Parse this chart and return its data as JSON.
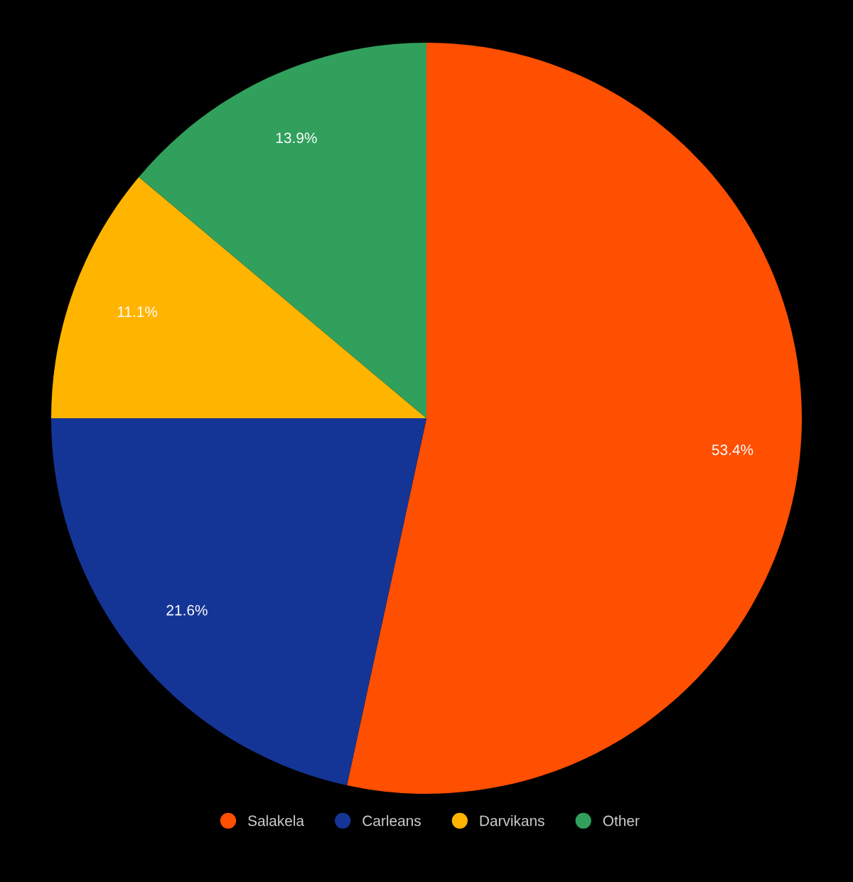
{
  "chart_data": {
    "type": "pie",
    "categories": [
      "Salakela",
      "Carleans",
      "Darvikans",
      "Other"
    ],
    "values": [
      53.4,
      21.6,
      11.1,
      13.9
    ],
    "colors": [
      "#ff4f00",
      "#153596",
      "#ffb400",
      "#31a05c"
    ],
    "value_labels": [
      "53.4%",
      "21.6%",
      "11.1%",
      "13.9%"
    ],
    "legend": "bottom"
  }
}
